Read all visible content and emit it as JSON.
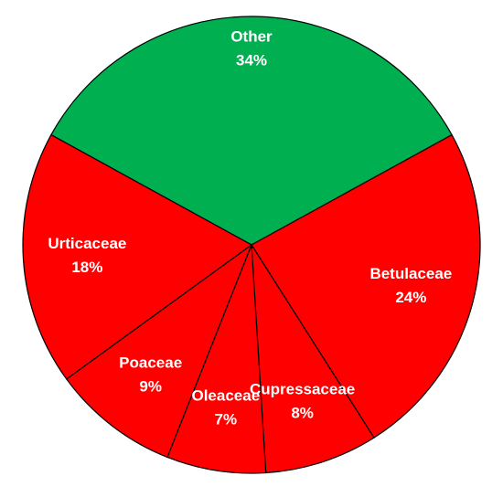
{
  "chart_data": {
    "type": "pie",
    "categories": [
      "Other",
      "Betulaceae",
      "Cupressaceae",
      "Oleaceae",
      "Poaceae",
      "Urticaceae"
    ],
    "values": [
      34,
      24,
      8,
      7,
      9,
      18
    ],
    "value_labels": [
      "34%",
      "24%",
      "8%",
      "7%",
      "9%",
      "18%"
    ],
    "colors": [
      "#00b050",
      "#ff0000",
      "#ff0000",
      "#ff0000",
      "#ff0000",
      "#ff0000"
    ]
  }
}
